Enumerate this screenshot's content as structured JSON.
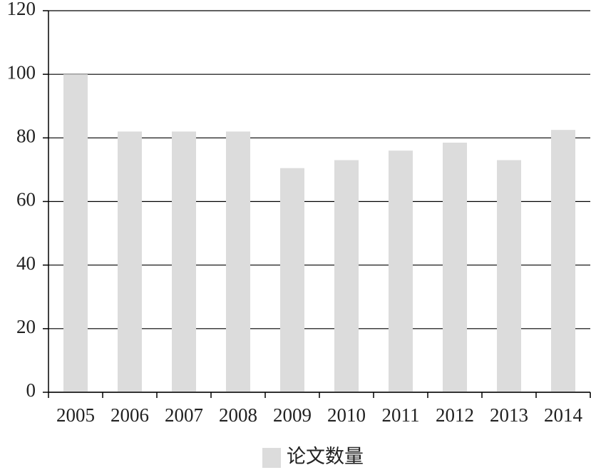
{
  "chart_data": {
    "type": "bar",
    "categories": [
      "2005",
      "2006",
      "2007",
      "2008",
      "2009",
      "2010",
      "2011",
      "2012",
      "2013",
      "2014"
    ],
    "series": [
      {
        "name": "论文数量",
        "color": "#dcdcdc",
        "values": [
          100,
          82,
          82,
          82,
          70.5,
          73,
          76,
          78.5,
          73,
          82.5
        ]
      }
    ],
    "ylim": [
      0,
      120
    ],
    "yticks": [
      0,
      20,
      40,
      60,
      80,
      100,
      120
    ],
    "grid": true,
    "legend": "bottom"
  }
}
